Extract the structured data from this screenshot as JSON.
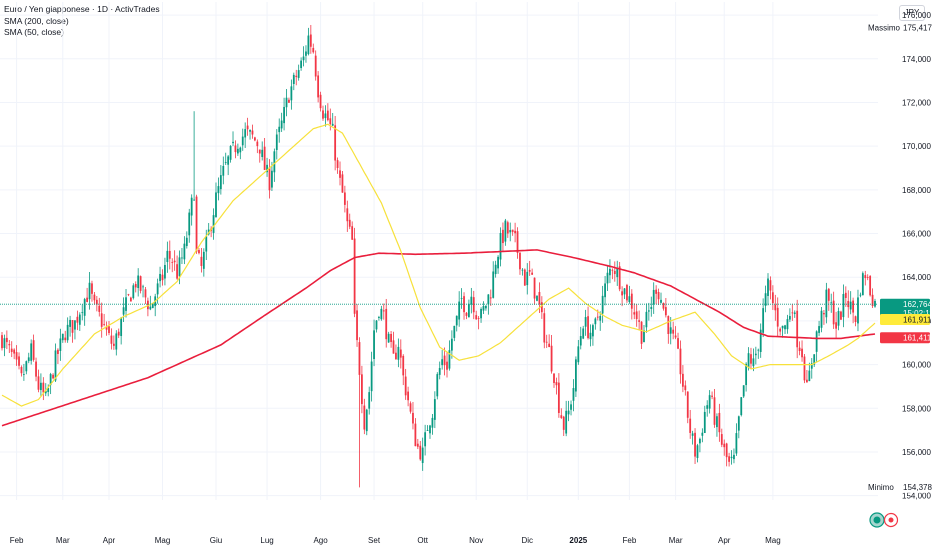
{
  "legend": {
    "title": "Euro / Yen giapponese · 1D · ActivTrades",
    "sma200": "SMA (200, close)",
    "sma50": "SMA (50, close)"
  },
  "currency": "JPY",
  "colors": {
    "up": "#089981",
    "down": "#f23645",
    "sma200": "#e91e3c",
    "sma50": "#f7e13b",
    "price_badge": "#089981",
    "sma50_badge": "#ffeb3b",
    "sma200_badge": "#f23645"
  },
  "chart_data": {
    "type": "candlestick",
    "y_ticks": [
      "176,000",
      "174,000",
      "172,000",
      "170,000",
      "168,000",
      "166,000",
      "164,000",
      "162,000",
      "160,000",
      "158,000",
      "156,000",
      "154,000"
    ],
    "y_tick_values": [
      176,
      174,
      172,
      170,
      168,
      166,
      164,
      162,
      160,
      158,
      156,
      154
    ],
    "ylim": [
      153.8,
      176.6
    ],
    "x_labels": [
      "Feb",
      "Mar",
      "Apr",
      "Mag",
      "Giu",
      "Lug",
      "Ago",
      "Set",
      "Ott",
      "Nov",
      "Dic",
      "2025",
      "Feb",
      "Mar",
      "Apr",
      "Mag"
    ],
    "x_label_bold": "2025",
    "max": {
      "label": "Massimo",
      "value": "175,417",
      "num": 175.417
    },
    "min": {
      "label": "Minimo",
      "value": "154,378",
      "num": 154.378
    },
    "last_price": {
      "value": "162,764",
      "countdown": "15:02:11",
      "num": 162.764
    },
    "sma50_last": {
      "value": "161,911",
      "num": 161.911
    },
    "sma200_last": {
      "value": "161,411",
      "num": 161.411
    },
    "close_path": [
      [
        0,
        161.2
      ],
      [
        4,
        160.4
      ],
      [
        8,
        159.3
      ],
      [
        12,
        160.6
      ],
      [
        15,
        159.0
      ],
      [
        18,
        158.4
      ],
      [
        22,
        160.2
      ],
      [
        26,
        161.5
      ],
      [
        30,
        161.9
      ],
      [
        33,
        162.8
      ],
      [
        36,
        163.4
      ],
      [
        38,
        162.6
      ],
      [
        41,
        162.0
      ],
      [
        44,
        161.2
      ],
      [
        46,
        160.8
      ],
      [
        49,
        162.0
      ],
      [
        52,
        163.0
      ],
      [
        55,
        163.8
      ],
      [
        58,
        163.3
      ],
      [
        61,
        162.6
      ],
      [
        63,
        163.2
      ],
      [
        66,
        164.0
      ],
      [
        68,
        165.0
      ],
      [
        70,
        164.8
      ],
      [
        72,
        164.2
      ],
      [
        75,
        165.2
      ],
      [
        77,
        166.6
      ],
      [
        79,
        168.0
      ],
      [
        80,
        165.0
      ],
      [
        82,
        164.4
      ],
      [
        85,
        166.0
      ],
      [
        88,
        167.6
      ],
      [
        91,
        168.8
      ],
      [
        94,
        169.6
      ],
      [
        97,
        170.2
      ],
      [
        100,
        170.6
      ],
      [
        103,
        170.4
      ],
      [
        106,
        170.0
      ],
      [
        108,
        169.0
      ],
      [
        110,
        168.4
      ],
      [
        112,
        169.8
      ],
      [
        115,
        171.0
      ],
      [
        118,
        172.4
      ],
      [
        121,
        173.2
      ],
      [
        124,
        174.0
      ],
      [
        126,
        175.0
      ],
      [
        128,
        174.4
      ],
      [
        130,
        172.6
      ],
      [
        132,
        171.6
      ],
      [
        134,
        171.2
      ],
      [
        136,
        170.6
      ],
      [
        138,
        168.8
      ],
      [
        140,
        167.8
      ],
      [
        142,
        166.4
      ],
      [
        144,
        165.6
      ],
      [
        145,
        162.0
      ],
      [
        147,
        159.8
      ],
      [
        149,
        157.4
      ],
      [
        151,
        158.8
      ],
      [
        153,
        161.6
      ],
      [
        155,
        162.6
      ],
      [
        157,
        162.2
      ],
      [
        159,
        161.0
      ],
      [
        161,
        160.2
      ],
      [
        163,
        161.0
      ],
      [
        165,
        159.4
      ],
      [
        167,
        158.4
      ],
      [
        169,
        157.0
      ],
      [
        171,
        156.2
      ],
      [
        173,
        155.9
      ],
      [
        175,
        157.2
      ],
      [
        177,
        157.9
      ],
      [
        179,
        159.4
      ],
      [
        181,
        160.2
      ],
      [
        183,
        160.0
      ],
      [
        185,
        161.2
      ],
      [
        187,
        162.0
      ],
      [
        189,
        163.0
      ],
      [
        191,
        162.6
      ],
      [
        193,
        163.2
      ],
      [
        195,
        162.4
      ],
      [
        197,
        162.2
      ],
      [
        199,
        162.8
      ],
      [
        201,
        163.4
      ],
      [
        203,
        164.8
      ],
      [
        205,
        165.6
      ],
      [
        207,
        166.2
      ],
      [
        209,
        165.9
      ],
      [
        211,
        165.6
      ],
      [
        213,
        164.8
      ],
      [
        215,
        163.9
      ],
      [
        217,
        164.1
      ],
      [
        219,
        163.4
      ],
      [
        221,
        162.6
      ],
      [
        223,
        161.4
      ],
      [
        225,
        160.6
      ],
      [
        227,
        159.6
      ],
      [
        229,
        158.2
      ],
      [
        231,
        157.2
      ],
      [
        233,
        157.8
      ],
      [
        235,
        159.0
      ],
      [
        237,
        160.8
      ],
      [
        239,
        162.0
      ],
      [
        241,
        161.6
      ],
      [
        243,
        161.4
      ],
      [
        245,
        162.2
      ],
      [
        247,
        163.0
      ],
      [
        249,
        164.0
      ],
      [
        251,
        164.6
      ],
      [
        253,
        164.2
      ],
      [
        255,
        163.6
      ],
      [
        257,
        163.2
      ],
      [
        259,
        162.8
      ],
      [
        261,
        162.2
      ],
      [
        263,
        161.4
      ],
      [
        265,
        162.0
      ],
      [
        267,
        162.8
      ],
      [
        269,
        163.6
      ],
      [
        271,
        163.0
      ],
      [
        273,
        162.2
      ],
      [
        275,
        161.4
      ],
      [
        277,
        160.8
      ],
      [
        279,
        159.8
      ],
      [
        281,
        158.4
      ],
      [
        283,
        157.0
      ],
      [
        285,
        156.0
      ],
      [
        287,
        156.6
      ],
      [
        289,
        157.8
      ],
      [
        291,
        158.6
      ],
      [
        293,
        157.6
      ],
      [
        295,
        156.8
      ],
      [
        297,
        156.0
      ],
      [
        299,
        155.4
      ],
      [
        301,
        155.6
      ],
      [
        303,
        157.4
      ],
      [
        305,
        159.0
      ],
      [
        307,
        160.4
      ],
      [
        309,
        160.0
      ],
      [
        311,
        161.0
      ],
      [
        313,
        162.4
      ],
      [
        315,
        163.6
      ],
      [
        317,
        162.8
      ],
      [
        319,
        162.0
      ],
      [
        321,
        161.6
      ],
      [
        323,
        162.0
      ],
      [
        325,
        162.8
      ],
      [
        327,
        161.2
      ],
      [
        329,
        160.6
      ],
      [
        331,
        158.8
      ],
      [
        333,
        160.2
      ],
      [
        335,
        161.4
      ],
      [
        337,
        162.2
      ],
      [
        339,
        163.0
      ],
      [
        341,
        162.6
      ],
      [
        343,
        161.8
      ],
      [
        345,
        162.4
      ],
      [
        347,
        163.2
      ],
      [
        349,
        162.6
      ],
      [
        351,
        162.2
      ],
      [
        353,
        163.6
      ],
      [
        355,
        164.2
      ],
      [
        357,
        163.4
      ],
      [
        359,
        162.8
      ]
    ],
    "sma200_path": [
      [
        0,
        157.2
      ],
      [
        30,
        158.3
      ],
      [
        60,
        159.4
      ],
      [
        90,
        160.9
      ],
      [
        110,
        162.4
      ],
      [
        125,
        163.5
      ],
      [
        135,
        164.3
      ],
      [
        145,
        164.9
      ],
      [
        155,
        165.1
      ],
      [
        170,
        165.05
      ],
      [
        190,
        165.1
      ],
      [
        210,
        165.2
      ],
      [
        220,
        165.25
      ],
      [
        235,
        164.9
      ],
      [
        250,
        164.5
      ],
      [
        260,
        164.2
      ],
      [
        275,
        163.6
      ],
      [
        285,
        163.0
      ],
      [
        295,
        162.4
      ],
      [
        305,
        161.7
      ],
      [
        315,
        161.3
      ],
      [
        325,
        161.25
      ],
      [
        335,
        161.2
      ],
      [
        345,
        161.2
      ],
      [
        359,
        161.4
      ]
    ],
    "sma50_path": [
      [
        0,
        158.6
      ],
      [
        8,
        158.1
      ],
      [
        15,
        158.4
      ],
      [
        25,
        159.8
      ],
      [
        38,
        161.4
      ],
      [
        50,
        162.2
      ],
      [
        62,
        162.8
      ],
      [
        72,
        163.8
      ],
      [
        82,
        165.6
      ],
      [
        95,
        167.5
      ],
      [
        108,
        168.8
      ],
      [
        120,
        170.0
      ],
      [
        128,
        170.8
      ],
      [
        134,
        171.0
      ],
      [
        140,
        170.6
      ],
      [
        148,
        169.0
      ],
      [
        156,
        167.4
      ],
      [
        164,
        165.2
      ],
      [
        172,
        162.6
      ],
      [
        180,
        160.8
      ],
      [
        188,
        160.2
      ],
      [
        196,
        160.4
      ],
      [
        205,
        161.0
      ],
      [
        215,
        162.0
      ],
      [
        225,
        163.0
      ],
      [
        233,
        163.5
      ],
      [
        240,
        162.8
      ],
      [
        248,
        162.2
      ],
      [
        255,
        161.8
      ],
      [
        265,
        161.5
      ],
      [
        275,
        162.0
      ],
      [
        285,
        162.4
      ],
      [
        293,
        161.4
      ],
      [
        300,
        160.4
      ],
      [
        308,
        159.8
      ],
      [
        316,
        160.0
      ],
      [
        325,
        160.0
      ],
      [
        333,
        160.0
      ],
      [
        340,
        160.4
      ],
      [
        348,
        160.9
      ],
      [
        352,
        161.2
      ],
      [
        359,
        161.9
      ]
    ]
  }
}
